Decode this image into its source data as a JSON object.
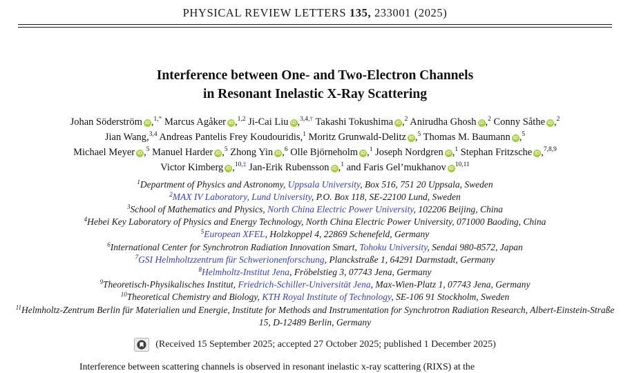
{
  "colors": {
    "link_blue": "#3742bd",
    "orcid_green": "#a6ce39",
    "text": "#1a1a1a"
  },
  "header": {
    "journal": "PHYSICAL REVIEW LETTERS",
    "volume": "135,",
    "pagination": "233001 (2025)"
  },
  "title": {
    "line1": "Interference between One- and Two-Electron Channels",
    "line2": "in Resonant Inelastic X-Ray Scattering"
  },
  "orcid_icon_label": "iD",
  "author_lines": [
    [
      {
        "name": "Johan Söderström",
        "orcid": true,
        "sup": "1,*"
      },
      {
        "name": "Marcus Agåker",
        "orcid": true,
        "sup": "1,2"
      },
      {
        "name": "Ji-Cai Liu",
        "orcid": true,
        "sup": "3,4,†"
      },
      {
        "name": "Takashi Tokushima",
        "orcid": true,
        "sup": "2"
      },
      {
        "name": "Anirudha Ghosh",
        "orcid": true,
        "sup": "2"
      },
      {
        "name": "Conny Såthe",
        "orcid": true,
        "sup": "2"
      }
    ],
    [
      {
        "name": "Jian Wang",
        "orcid": false,
        "sup": "3,4"
      },
      {
        "name": "Andreas Pantelis Frey Koudouridis",
        "orcid": false,
        "sup": "1"
      },
      {
        "name": "Moritz Grunwald-Delitz",
        "orcid": true,
        "sup": "5"
      },
      {
        "name": "Thomas M. Baumann",
        "orcid": true,
        "sup": "5"
      }
    ],
    [
      {
        "name": "Michael Meyer",
        "orcid": true,
        "sup": "5"
      },
      {
        "name": "Manuel Harder",
        "orcid": true,
        "sup": "5"
      },
      {
        "name": "Zhong Yin",
        "orcid": true,
        "sup": "6"
      },
      {
        "name": "Olle Björneholm",
        "orcid": true,
        "sup": "1"
      },
      {
        "name": "Joseph Nordgren",
        "orcid": true,
        "sup": "1"
      },
      {
        "name": "Stephan Fritzsche",
        "orcid": true,
        "sup": "7,8,9"
      }
    ],
    [
      {
        "name": "Victor Kimberg",
        "orcid": true,
        "sup": "10,‡"
      },
      {
        "name": "Jan-Erik Rubensson",
        "orcid": true,
        "sup": "1"
      },
      {
        "prefix": "and ",
        "name": "Faris Gel’mukhanov",
        "orcid": true,
        "sup": "10,11",
        "nocomma": true
      }
    ]
  ],
  "affiliations": [
    {
      "sup": "1",
      "segments": [
        {
          "t": "Department of Physics and Astronomy, "
        },
        {
          "t": "Uppsala University",
          "link": true
        },
        {
          "t": ", Box 516, 751 20 Uppsala, Sweden"
        }
      ]
    },
    {
      "sup": "2",
      "segments": [
        {
          "t": "MAX IV Laboratory, Lund University",
          "link": true
        },
        {
          "t": ", P.O. Box 118, SE-22100 Lund, Sweden"
        }
      ]
    },
    {
      "sup": "3",
      "segments": [
        {
          "t": "School of Mathematics and Physics, "
        },
        {
          "t": "North China Electric Power University",
          "link": true
        },
        {
          "t": ", 102206 Beijing, China"
        }
      ]
    },
    {
      "sup": "4",
      "segments": [
        {
          "t": "Hebei Key Laboratory of Physics and Energy Technology, North China Electric Power University, 071000 Baoding, China"
        }
      ]
    },
    {
      "sup": "5",
      "segments": [
        {
          "t": "European XFEL",
          "link": true
        },
        {
          "t": ", Holzkoppel 4, 22869 Schenefeld, Germany"
        }
      ]
    },
    {
      "sup": "6",
      "segments": [
        {
          "t": "International Center for Synchrotron Radiation Innovation Smart, "
        },
        {
          "t": "Tohoku University",
          "link": true
        },
        {
          "t": ", Sendai 980-8572, Japan"
        }
      ]
    },
    {
      "sup": "7",
      "segments": [
        {
          "t": "GSI Helmholtzzentrum für Schwerionenforschung",
          "link": true
        },
        {
          "t": ", Planckstraße 1, 64291 Darmstadt, Germany"
        }
      ]
    },
    {
      "sup": "8",
      "segments": [
        {
          "t": "Helmholtz-Institut Jena",
          "link": true
        },
        {
          "t": ", Fröbelstieg 3, 07743 Jena, Germany"
        }
      ]
    },
    {
      "sup": "9",
      "segments": [
        {
          "t": "Theoretisch-Physikalisches Institut, "
        },
        {
          "t": "Friedrich-Schiller-Universität Jena",
          "link": true
        },
        {
          "t": ", Max-Wien-Platz 1, 07743 Jena, Germany"
        }
      ]
    },
    {
      "sup": "10",
      "segments": [
        {
          "t": "Theoretical Chemistry and Biology, "
        },
        {
          "t": "KTH Royal Institute of Technology",
          "link": true
        },
        {
          "t": ", SE-106 91 Stockholm, Sweden"
        }
      ]
    },
    {
      "sup": "11",
      "segments": [
        {
          "t": "Helmholtz-Zentrum Berlin für Materialien und Energie, Institute for Methods and Instrumentation for Synchrotron Radiation Research, Albert-Einstein-Straße 15, D-12489 Berlin, Germany"
        }
      ]
    }
  ],
  "received": {
    "icon": "crossmark-icon",
    "text": "(Received 15 September 2025; accepted 27 October 2025; published 1 December 2025)"
  },
  "abstract": {
    "first_line": "Interference between scattering channels is observed in resonant inelastic x-ray scattering (RIXS) at the"
  }
}
